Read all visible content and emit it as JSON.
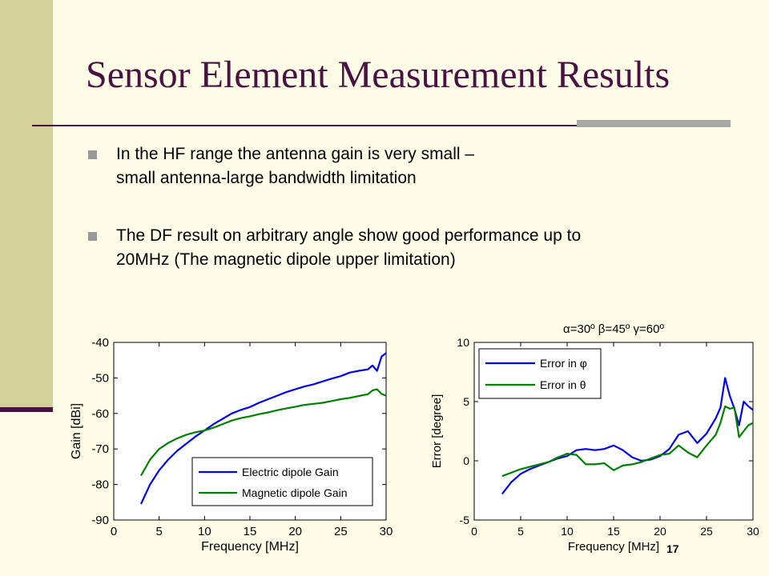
{
  "slide": {
    "title": "Sensor Element Measurement Results",
    "bullets": [
      {
        "lines": [
          "In the HF range the antenna gain is very small –",
          "small antenna-large bandwidth limitation"
        ]
      },
      {
        "lines": [
          "The DF result on arbitrary angle show good performance up to",
          "20MHz (The magnetic dipole upper limitation)"
        ]
      }
    ],
    "page_number": "17",
    "colors": {
      "title": "#4a1240",
      "background": "#fffde8",
      "sidebar": "#d4d09a",
      "bullet": "#999999"
    }
  },
  "chart_data": [
    {
      "type": "line",
      "title": "",
      "xlabel": "Frequency [MHz]",
      "ylabel": "Gain [dBi]",
      "xlim": [
        0,
        30
      ],
      "ylim": [
        -90,
        -40
      ],
      "xticks": [
        0,
        5,
        10,
        15,
        20,
        25,
        30
      ],
      "yticks": [
        -90,
        -80,
        -70,
        -60,
        -50,
        -40
      ],
      "grid": false,
      "legend": "bottom-right",
      "x": [
        3,
        4,
        5,
        6,
        7,
        8,
        9,
        10,
        11,
        12,
        13,
        14,
        15,
        16,
        17,
        18,
        19,
        20,
        21,
        22,
        23,
        24,
        25,
        26,
        27,
        28,
        28.5,
        29,
        29.5,
        30
      ],
      "series": [
        {
          "name": "Electric dipole Gain",
          "color": "#0000ff",
          "values": [
            -85.5,
            -80,
            -76,
            -73,
            -70.5,
            -68.5,
            -66.5,
            -64.8,
            -63,
            -61.5,
            -60,
            -59,
            -58.2,
            -57,
            -56,
            -55,
            -54,
            -53.2,
            -52.4,
            -51.8,
            -51,
            -50.2,
            -49.5,
            -48.5,
            -48,
            -47.6,
            -46.5,
            -48,
            -44,
            -43
          ]
        },
        {
          "name": "Magnetic dipole Gain",
          "color": "#008000",
          "values": [
            -77.5,
            -73,
            -70,
            -68.3,
            -67,
            -66,
            -65.3,
            -64.8,
            -64,
            -63,
            -62,
            -61.3,
            -60.8,
            -60.2,
            -59.7,
            -59.1,
            -58.6,
            -58.1,
            -57.6,
            -57.3,
            -57,
            -56.5,
            -56,
            -55.6,
            -55.1,
            -54.6,
            -53.5,
            -53.2,
            -54.5,
            -55
          ]
        }
      ]
    },
    {
      "type": "line",
      "title": "α=30º  β=45º  γ=60º",
      "xlabel": "Frequency [MHz]",
      "ylabel": "Error [degree]",
      "xlim": [
        0,
        30
      ],
      "ylim": [
        -5,
        10
      ],
      "xticks": [
        0,
        5,
        10,
        15,
        20,
        25,
        30
      ],
      "yticks": [
        -5,
        0,
        5,
        10
      ],
      "grid": false,
      "legend": "top-left",
      "x": [
        3,
        4,
        5,
        6,
        7,
        8,
        9,
        10,
        11,
        12,
        13,
        14,
        15,
        16,
        17,
        18,
        19,
        20,
        21,
        22,
        23,
        24,
        25,
        26,
        26.5,
        27,
        27.5,
        28,
        28.5,
        29,
        29.5,
        30
      ],
      "series": [
        {
          "name": "Error in φ",
          "color": "#0000ff",
          "values": [
            -2.8,
            -1.8,
            -1.1,
            -0.7,
            -0.4,
            -0.1,
            0.2,
            0.4,
            0.9,
            1.0,
            0.9,
            1.0,
            1.3,
            0.9,
            0.3,
            0.0,
            0.1,
            0.4,
            1.0,
            2.2,
            2.5,
            1.5,
            2.3,
            3.6,
            4.5,
            7.0,
            5.5,
            4.4,
            3.0,
            5.0,
            4.6,
            4.3
          ]
        },
        {
          "name": "Error in θ",
          "color": "#008000",
          "values": [
            -1.3,
            -1.0,
            -0.7,
            -0.5,
            -0.3,
            -0.1,
            0.3,
            0.6,
            0.5,
            -0.3,
            -0.3,
            -0.2,
            -0.8,
            -0.4,
            -0.3,
            -0.1,
            0.2,
            0.5,
            0.6,
            1.3,
            0.7,
            0.3,
            1.3,
            2.2,
            3.2,
            4.6,
            4.4,
            4.5,
            2.0,
            2.5,
            3.0,
            3.2
          ]
        }
      ]
    }
  ]
}
